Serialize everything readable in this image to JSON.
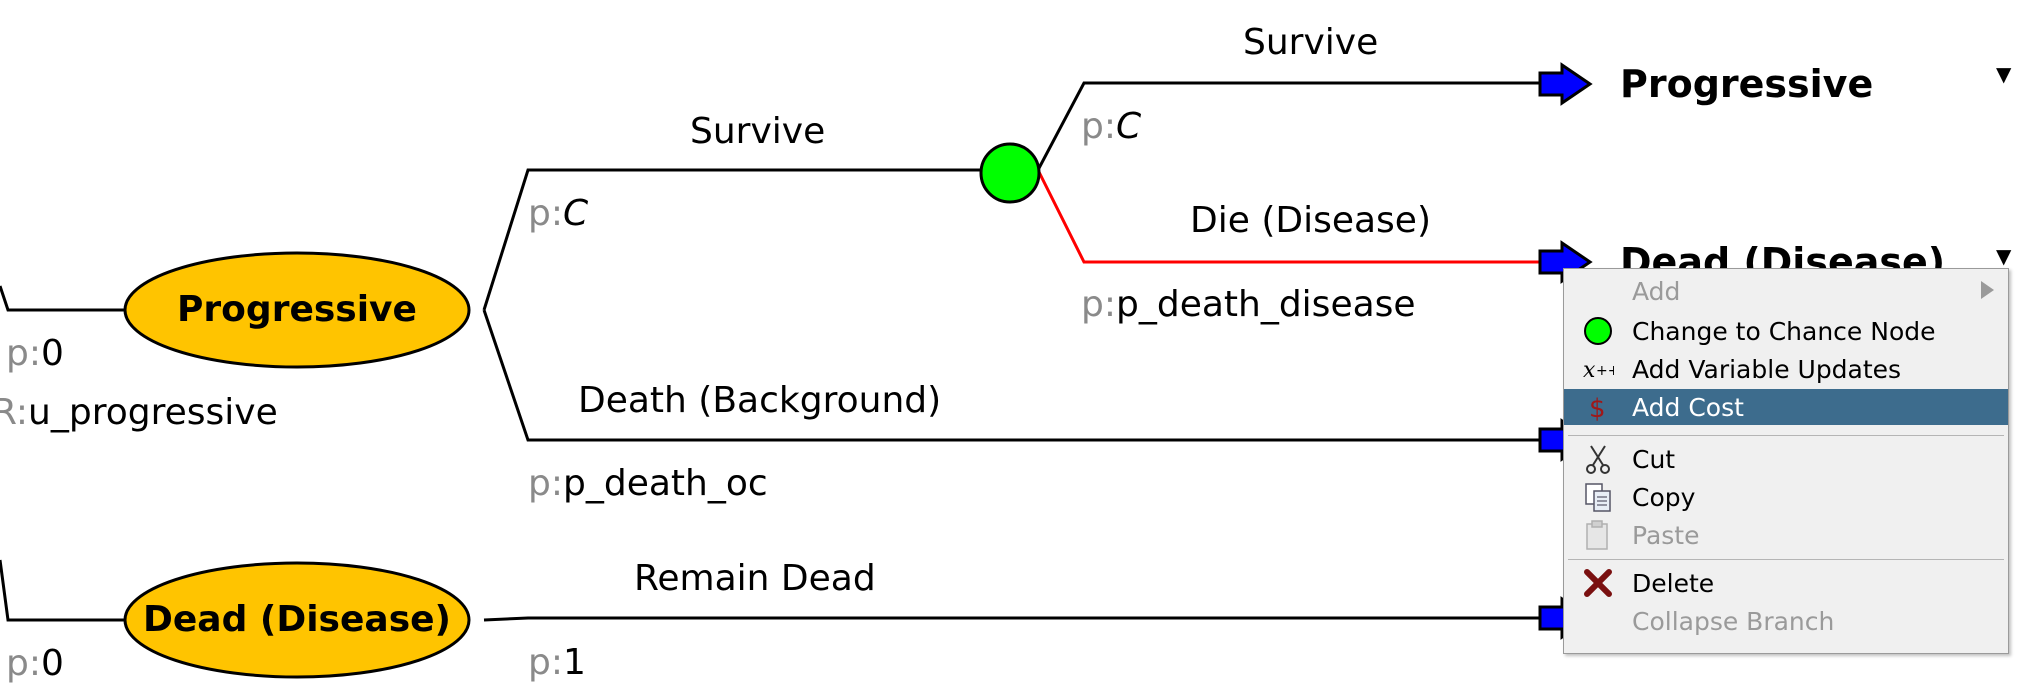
{
  "tree": {
    "left_probs": {
      "top": "0",
      "bottom": "0"
    },
    "left_reward": {
      "prefix": "R:",
      "value": "u_progressive"
    },
    "prob_prefix": "p:",
    "nodes": {
      "progressive": "Progressive",
      "dead_disease": "Dead (Disease)"
    },
    "branches": {
      "survive_upper": {
        "label": "Survive",
        "prob": "C"
      },
      "survive_inner": {
        "label": "Survive",
        "prob": "C"
      },
      "die_disease": {
        "label": "Die (Disease)",
        "prob": "p_death_disease"
      },
      "death_background": {
        "label": "Death (Background)",
        "prob": "p_death_oc"
      },
      "remain_dead": {
        "label": "Remain Dead",
        "prob": "1"
      }
    },
    "terminals": {
      "progressive": "Progressive",
      "dead_disease": "Dead (Disease)"
    },
    "dropdown_glyph": "▼",
    "colors": {
      "state_node": "#ffc400",
      "chance_node": "#00ff00",
      "transition_arrow": "#0000ff",
      "selected_branch": "#ff0000"
    }
  },
  "context_menu": {
    "items": [
      {
        "id": "add",
        "label": "Add",
        "enabled": false,
        "submenu": true
      },
      {
        "id": "change_to_chance",
        "label": "Change to Chance Node",
        "icon": "green-circle-icon",
        "enabled": true
      },
      {
        "id": "add_variable_updates",
        "label": "Add Variable Updates",
        "icon": "variable-update-icon",
        "enabled": true
      },
      {
        "id": "add_cost",
        "label": "Add Cost",
        "icon": "dollar-icon",
        "enabled": true,
        "selected": true
      },
      {
        "id": "cut",
        "label": "Cut",
        "icon": "scissors-icon",
        "enabled": true
      },
      {
        "id": "copy",
        "label": "Copy",
        "icon": "copy-icon",
        "enabled": true
      },
      {
        "id": "paste",
        "label": "Paste",
        "icon": "paste-icon",
        "enabled": false
      },
      {
        "id": "delete",
        "label": "Delete",
        "icon": "delete-icon",
        "enabled": true
      },
      {
        "id": "collapse_branch",
        "label": "Collapse Branch",
        "enabled": false
      }
    ],
    "selection_color": "#3d6c8d"
  }
}
